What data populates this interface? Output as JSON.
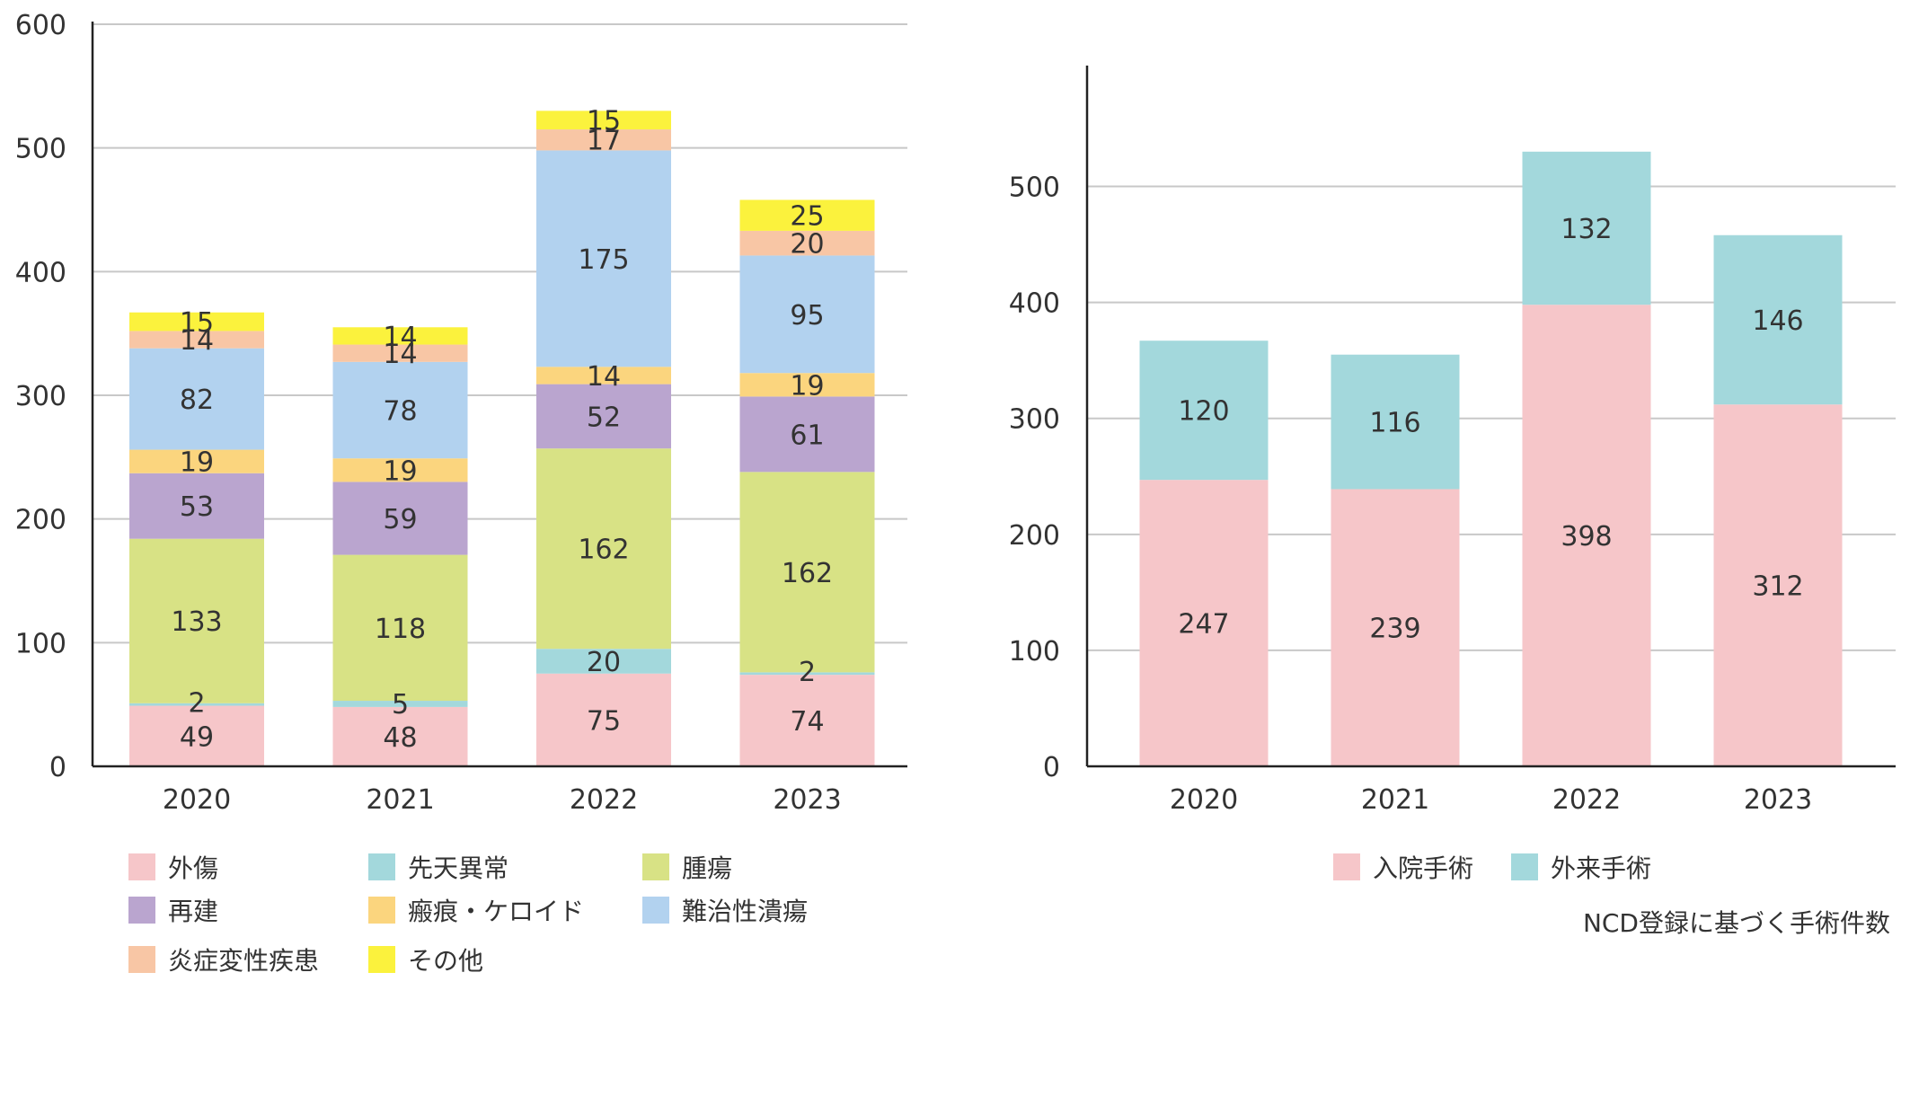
{
  "chart_data": [
    {
      "type": "bar",
      "stacked": true,
      "categories": [
        "2020",
        "2021",
        "2022",
        "2023"
      ],
      "ylim": [
        0,
        600
      ],
      "yticks": [
        0,
        100,
        200,
        300,
        400,
        500,
        600
      ],
      "grid": true,
      "legend_position": "bottom",
      "series": [
        {
          "name": "外傷",
          "color": "#f6c6c9",
          "values": [
            49,
            48,
            75,
            74
          ],
          "labels": [
            "49",
            "48",
            "75",
            "74"
          ]
        },
        {
          "name": "先天異常",
          "color": "#a3d8dc",
          "values": [
            2,
            5,
            20,
            2
          ],
          "labels": [
            "2",
            "5",
            "20",
            "2"
          ]
        },
        {
          "name": "腫瘍",
          "color": "#d8e285",
          "values": [
            133,
            118,
            162,
            162
          ],
          "labels": [
            "133",
            "118",
            "162",
            "162"
          ]
        },
        {
          "name": "再建",
          "color": "#baa5cf",
          "values": [
            53,
            59,
            52,
            61
          ],
          "labels": [
            "53",
            "59",
            "52",
            "61"
          ]
        },
        {
          "name": "瘢痕・ケロイド",
          "color": "#fbd57e",
          "values": [
            19,
            19,
            14,
            19
          ],
          "labels": [
            "19",
            "19",
            "14",
            "19"
          ]
        },
        {
          "name": "難治性潰瘍",
          "color": "#b2d2ef",
          "values": [
            82,
            78,
            175,
            95
          ],
          "labels": [
            "82",
            "78",
            "175",
            "95"
          ]
        },
        {
          "name": "炎症変性疾患",
          "color": "#f8c6a5",
          "values": [
            14,
            14,
            17,
            20
          ],
          "labels": [
            "14",
            "14",
            "17",
            "20"
          ]
        },
        {
          "name": "その他",
          "color": "#fbf23d",
          "values": [
            15,
            14,
            15,
            25
          ],
          "labels": [
            "15",
            "14",
            "15",
            "25"
          ]
        }
      ]
    },
    {
      "type": "bar",
      "stacked": true,
      "categories": [
        "2020",
        "2021",
        "2022",
        "2023"
      ],
      "ylim": [
        0,
        550
      ],
      "yticks": [
        0,
        100,
        200,
        300,
        400,
        500
      ],
      "grid": true,
      "legend_position": "bottom",
      "note": "NCD登録に基づく手術件数",
      "series": [
        {
          "name": "入院手術",
          "color": "#f6c6c9",
          "values": [
            247,
            239,
            398,
            312
          ],
          "labels": [
            "247",
            "239",
            "398",
            "312"
          ]
        },
        {
          "name": "外来手術",
          "color": "#a3d8dc",
          "values": [
            120,
            116,
            132,
            146
          ],
          "labels": [
            "120",
            "116",
            "132",
            "146"
          ]
        }
      ]
    }
  ]
}
